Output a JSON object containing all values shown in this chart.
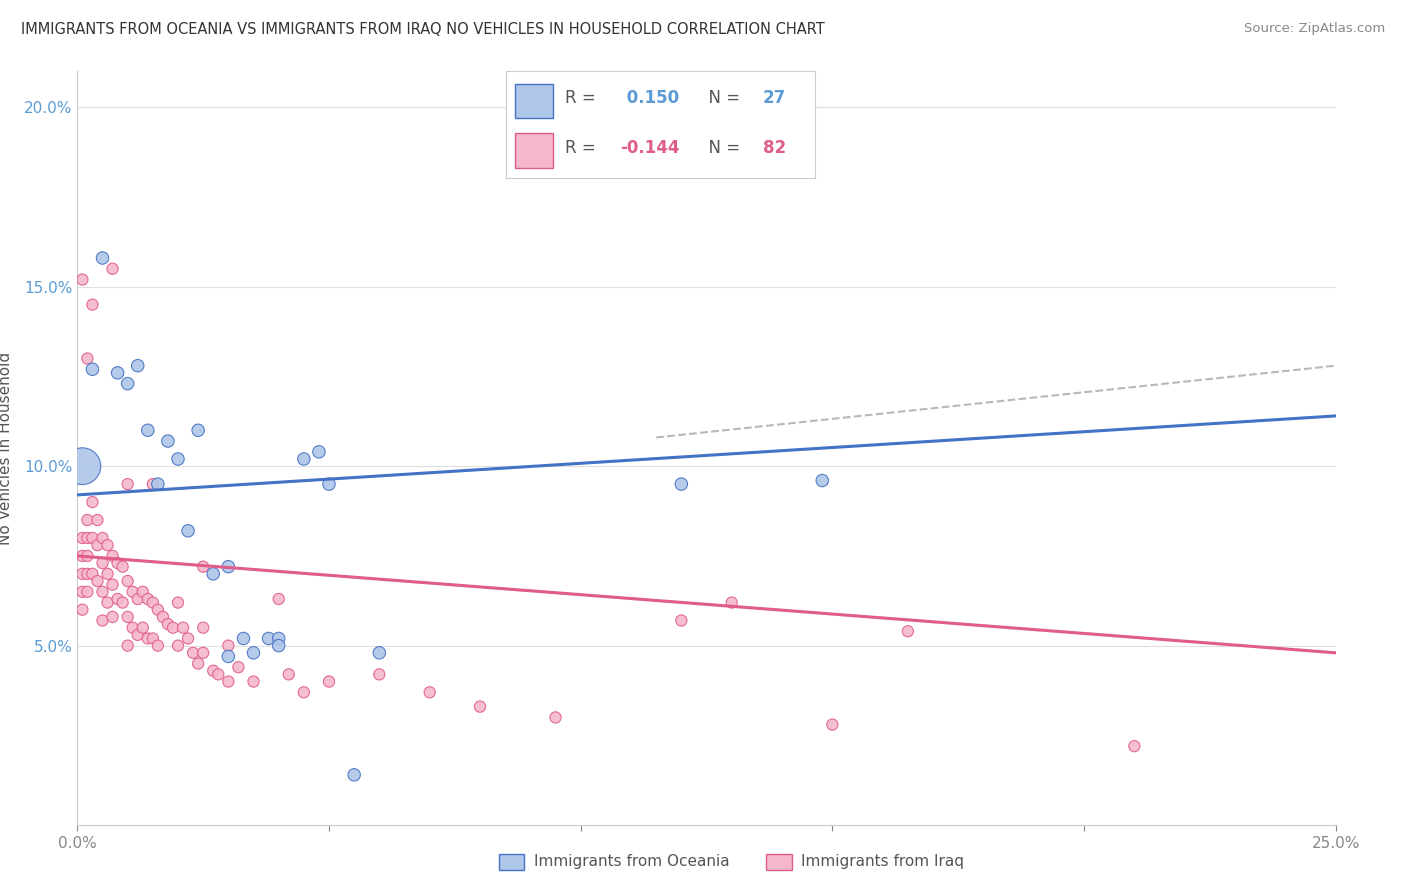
{
  "title": "IMMIGRANTS FROM OCEANIA VS IMMIGRANTS FROM IRAQ NO VEHICLES IN HOUSEHOLD CORRELATION CHART",
  "source": "Source: ZipAtlas.com",
  "ylabel": "No Vehicles in Household",
  "xmin": 0.0,
  "xmax": 0.25,
  "ymin": 0.0,
  "ymax": 0.21,
  "yticks": [
    0.05,
    0.1,
    0.15,
    0.2
  ],
  "ytick_labels": [
    "5.0%",
    "10.0%",
    "15.0%",
    "20.0%"
  ],
  "xticks": [
    0.0,
    0.05,
    0.1,
    0.15,
    0.2,
    0.25
  ],
  "xtick_labels": [
    "0.0%",
    "",
    "",
    "",
    "",
    "25.0%"
  ],
  "color_blue": "#aec6e8",
  "color_pink": "#f5b8cb",
  "line_blue": "#4472c4",
  "line_pink": "#e05c8a",
  "line_dash": "#b8b8b8",
  "background": "#ffffff",
  "grid_color": "#e0e0e0",
  "oceania_x": [
    0.001,
    0.003,
    0.005,
    0.008,
    0.01,
    0.012,
    0.014,
    0.016,
    0.018,
    0.02,
    0.022,
    0.024,
    0.027,
    0.03,
    0.033,
    0.038,
    0.04,
    0.045,
    0.048,
    0.05,
    0.055,
    0.06,
    0.12,
    0.148,
    0.03,
    0.035,
    0.04
  ],
  "oceania_y": [
    0.1,
    0.127,
    0.158,
    0.126,
    0.123,
    0.128,
    0.11,
    0.095,
    0.107,
    0.102,
    0.082,
    0.11,
    0.07,
    0.072,
    0.052,
    0.052,
    0.052,
    0.102,
    0.104,
    0.095,
    0.014,
    0.048,
    0.095,
    0.096,
    0.047,
    0.048,
    0.05
  ],
  "oceania_sizes": [
    700,
    80,
    80,
    80,
    80,
    80,
    80,
    80,
    80,
    80,
    80,
    80,
    80,
    80,
    80,
    80,
    80,
    80,
    80,
    80,
    80,
    80,
    80,
    80,
    80,
    80,
    80
  ],
  "iraq_x": [
    0.001,
    0.001,
    0.001,
    0.001,
    0.001,
    0.002,
    0.002,
    0.002,
    0.002,
    0.002,
    0.003,
    0.003,
    0.003,
    0.004,
    0.004,
    0.004,
    0.005,
    0.005,
    0.005,
    0.005,
    0.006,
    0.006,
    0.006,
    0.007,
    0.007,
    0.007,
    0.008,
    0.008,
    0.009,
    0.009,
    0.01,
    0.01,
    0.01,
    0.011,
    0.011,
    0.012,
    0.012,
    0.013,
    0.013,
    0.014,
    0.014,
    0.015,
    0.015,
    0.016,
    0.016,
    0.017,
    0.018,
    0.019,
    0.02,
    0.02,
    0.021,
    0.022,
    0.023,
    0.024,
    0.025,
    0.025,
    0.027,
    0.028,
    0.03,
    0.03,
    0.032,
    0.035,
    0.04,
    0.042,
    0.045,
    0.05,
    0.06,
    0.07,
    0.08,
    0.095,
    0.12,
    0.13,
    0.15,
    0.165,
    0.21,
    0.001,
    0.002,
    0.003,
    0.007,
    0.01,
    0.015,
    0.025
  ],
  "iraq_y": [
    0.08,
    0.075,
    0.07,
    0.065,
    0.06,
    0.085,
    0.08,
    0.075,
    0.07,
    0.065,
    0.09,
    0.08,
    0.07,
    0.085,
    0.078,
    0.068,
    0.08,
    0.073,
    0.065,
    0.057,
    0.078,
    0.07,
    0.062,
    0.075,
    0.067,
    0.058,
    0.073,
    0.063,
    0.072,
    0.062,
    0.068,
    0.058,
    0.05,
    0.065,
    0.055,
    0.063,
    0.053,
    0.065,
    0.055,
    0.063,
    0.052,
    0.062,
    0.052,
    0.06,
    0.05,
    0.058,
    0.056,
    0.055,
    0.062,
    0.05,
    0.055,
    0.052,
    0.048,
    0.045,
    0.055,
    0.048,
    0.043,
    0.042,
    0.05,
    0.04,
    0.044,
    0.04,
    0.063,
    0.042,
    0.037,
    0.04,
    0.042,
    0.037,
    0.033,
    0.03,
    0.057,
    0.062,
    0.028,
    0.054,
    0.022,
    0.152,
    0.13,
    0.145,
    0.155,
    0.095,
    0.095,
    0.072
  ],
  "blue_line_x": [
    0.0,
    0.25
  ],
  "blue_line_y": [
    0.092,
    0.114
  ],
  "pink_line_x": [
    0.0,
    0.25
  ],
  "pink_line_y": [
    0.075,
    0.048
  ],
  "dash_line_x": [
    0.115,
    0.25
  ],
  "dash_line_y": [
    0.108,
    0.128
  ]
}
